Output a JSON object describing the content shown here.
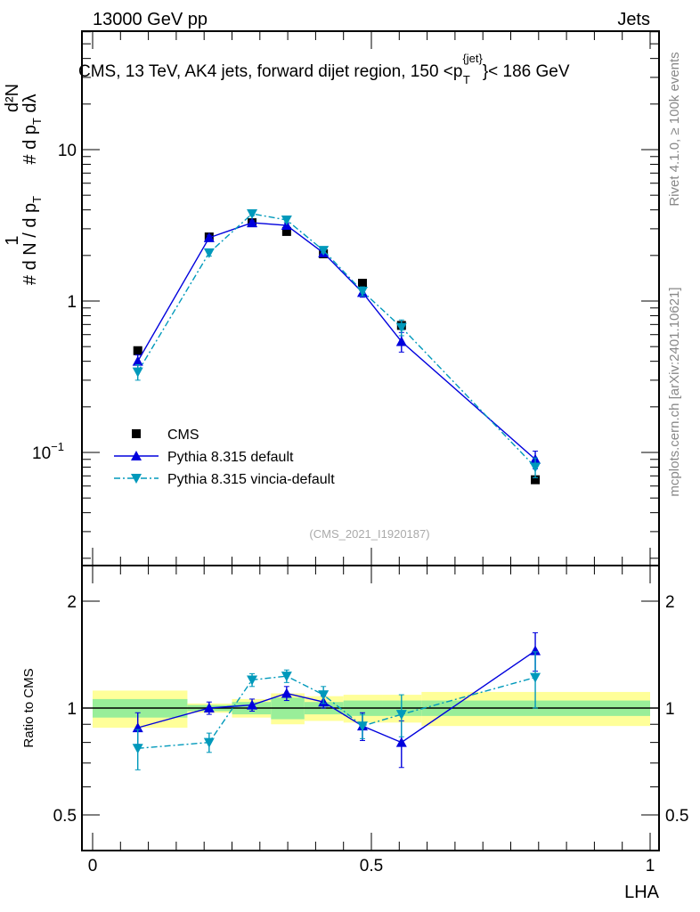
{
  "header": {
    "left": "13000 GeV pp",
    "right": "Jets"
  },
  "side": {
    "rivet": "Rivet 4.1.0, ≥ 100k events",
    "mcplots": "mcplots.cern.ch [arXiv:2401.10621]"
  },
  "chart_data": [
    {
      "type": "line",
      "title": "CMS, 13 TeV, AK4 jets, forward dijet region, 150 <p_T^{jet}< 186 GeV",
      "title_text": "CMS, 13 TeV, AK4 jets, forward dijet region, 150 <p",
      "title_sup": "{jet}",
      "title_sub": "T",
      "title_end": "}< 186 GeV",
      "ylabel": "1/(dN/dp_T) d²N/(dp_T dλ)",
      "yscale": "log",
      "ylim": [
        0.02,
        60
      ],
      "yticks": [
        {
          "v": 10,
          "label": "10"
        },
        {
          "v": 1,
          "label": "1"
        },
        {
          "v": 0.1,
          "label": "10",
          "sup": "−1"
        }
      ],
      "x": [
        0.081,
        0.209,
        0.286,
        0.348,
        0.414,
        0.484,
        0.554,
        0.794
      ],
      "series": [
        {
          "name": "CMS",
          "color": "#000000",
          "marker": "square",
          "values": [
            0.47,
            2.65,
            3.29,
            2.88,
            2.05,
            1.31,
            0.69,
            0.066
          ]
        },
        {
          "name": "Pythia 8.315 default",
          "color": "#0000dd",
          "marker": "triangle-up",
          "line": "solid",
          "values": [
            0.4,
            2.62,
            3.29,
            3.16,
            2.08,
            1.14,
            0.54,
            0.09
          ],
          "err": [
            0.04,
            0.1,
            0.1,
            0.1,
            0.08,
            0.08,
            0.08,
            0.012
          ]
        },
        {
          "name": "Pythia 8.315 vincia-default",
          "color": "#0099bb",
          "marker": "triangle-down",
          "line": "dashdot",
          "values": [
            0.34,
            2.08,
            3.77,
            3.43,
            2.16,
            1.16,
            0.67,
            0.08
          ],
          "err": [
            0.04,
            0.1,
            0.1,
            0.1,
            0.08,
            0.08,
            0.08,
            0.012
          ]
        }
      ],
      "annotation": "(CMS_2021_I1920187)",
      "legend_position": "lower-left"
    },
    {
      "type": "line",
      "ylabel": "Ratio to CMS",
      "xlabel": "LHA",
      "yscale": "log",
      "ylim": [
        0.4,
        2.35
      ],
      "xlim": [
        -0.02,
        1.02
      ],
      "yticks": [
        {
          "v": 2,
          "label": "2"
        },
        {
          "v": 1,
          "label": "1"
        },
        {
          "v": 0.5,
          "label": "0.5"
        }
      ],
      "xticks": [
        {
          "v": 0,
          "label": "0"
        },
        {
          "v": 0.5,
          "label": "0.5"
        },
        {
          "v": 1,
          "label": "1"
        }
      ],
      "bands": [
        [
          0,
          0.17,
          0.12,
          0.06
        ],
        [
          0.17,
          0.25,
          0.03,
          0.02
        ],
        [
          0.25,
          0.32,
          0.06,
          0.04
        ],
        [
          0.32,
          0.38,
          0.1,
          0.07
        ],
        [
          0.38,
          0.45,
          0.08,
          0.04
        ],
        [
          0.45,
          0.52,
          0.09,
          0.05
        ],
        [
          0.52,
          0.59,
          0.09,
          0.05
        ],
        [
          0.59,
          1.0,
          0.11,
          0.05
        ]
      ],
      "series": [
        {
          "name": "Pythia 8.315 default",
          "values": [
            0.88,
            1.0,
            1.02,
            1.1,
            1.04,
            0.89,
            0.8,
            1.45
          ],
          "err": [
            0.09,
            0.04,
            0.04,
            0.05,
            0.04,
            0.08,
            0.12,
            0.18
          ]
        },
        {
          "name": "Pythia 8.315 vincia-default",
          "values": [
            0.77,
            0.8,
            1.2,
            1.23,
            1.09,
            0.89,
            0.96,
            1.22
          ],
          "err": [
            0.1,
            0.05,
            0.05,
            0.05,
            0.06,
            0.07,
            0.13,
            0.22
          ]
        }
      ]
    }
  ]
}
